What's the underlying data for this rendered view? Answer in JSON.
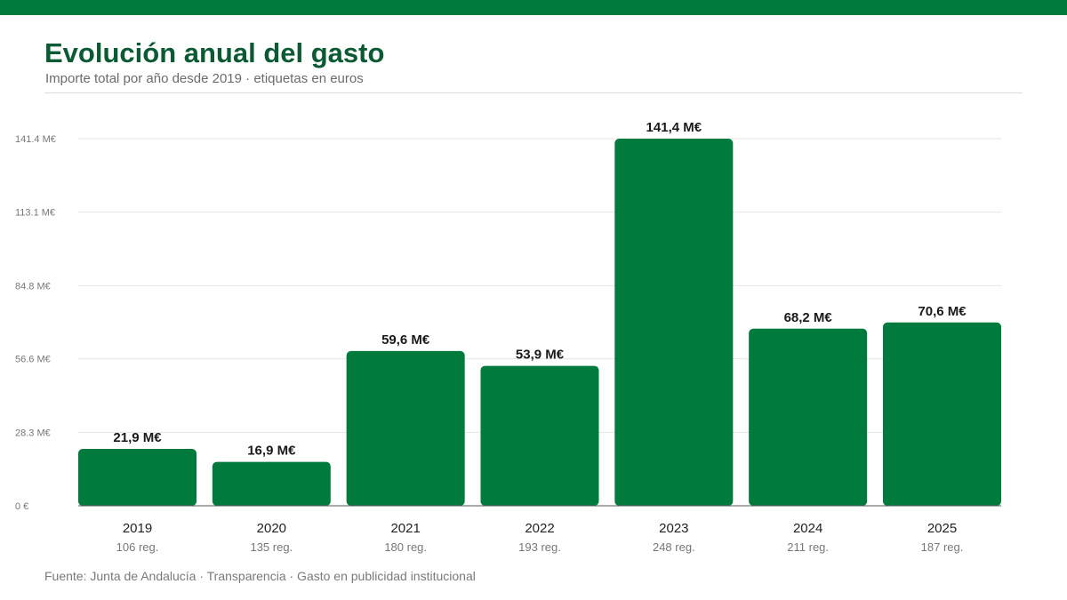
{
  "colors": {
    "brand": "#007a3d",
    "title": "#0b5a33",
    "grid": "#e6e6e6",
    "axis": "#555555"
  },
  "header": {
    "title": "Evolución anual del gasto",
    "subtitle": "Importe total por año desde 2019 · etiquetas en euros"
  },
  "footer": {
    "source": "Fuente: Junta de Andalucía · Transparencia · Gasto en publicidad institucional"
  },
  "chart_data": {
    "type": "bar",
    "categories": [
      "2019",
      "2020",
      "2021",
      "2022",
      "2023",
      "2024",
      "2025"
    ],
    "values": [
      21.9,
      16.9,
      59.6,
      53.9,
      141.4,
      68.2,
      70.6
    ],
    "value_labels": [
      "21,9 M€",
      "16,9 M€",
      "59,6 M€",
      "53,9 M€",
      "141,4 M€",
      "68,2 M€",
      "70,6 M€"
    ],
    "category_sublabels": [
      "106 reg.",
      "135 reg.",
      "180 reg.",
      "193 reg.",
      "248 reg.",
      "211 reg.",
      "187 reg."
    ],
    "yticks": [
      0,
      28.3,
      56.6,
      84.8,
      113.1,
      141.4
    ],
    "ytick_labels": [
      "0 €",
      "28.3 M€",
      "56.6 M€",
      "84.8 M€",
      "113.1 M€",
      "141.4 M€"
    ],
    "ylim": [
      0,
      141.4
    ],
    "grid": true,
    "legend": "none"
  }
}
